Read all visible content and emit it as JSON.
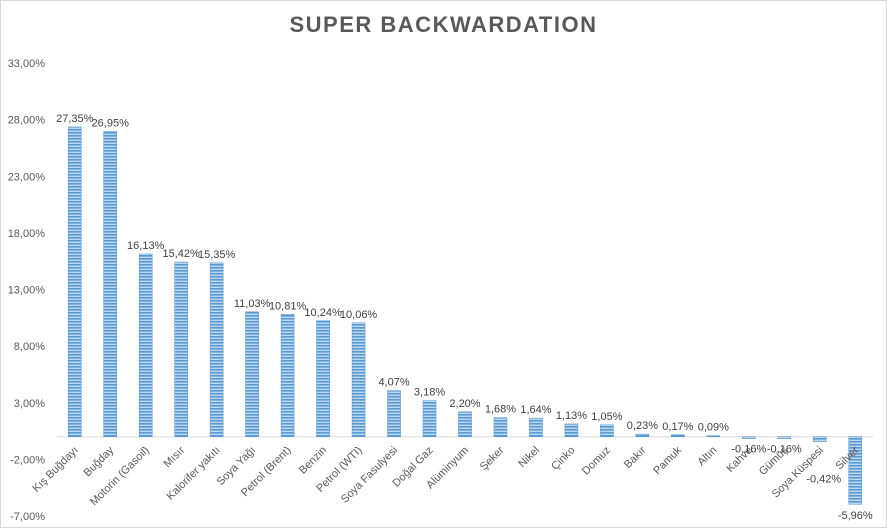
{
  "chart_data": {
    "type": "bar",
    "title": "SUPER BACKWARDATION",
    "xlabel": "",
    "ylabel": "",
    "ylim": [
      -7,
      33
    ],
    "yticks": [
      33,
      28,
      23,
      18,
      13,
      8,
      3,
      -2,
      -7
    ],
    "ytick_labels": [
      "33,00%",
      "28,00%",
      "23,00%",
      "18,00%",
      "13,00%",
      "8,00%",
      "3,00%",
      "-2,00%",
      "-7,00%"
    ],
    "grid": false,
    "legend": "none",
    "bar_color": "#5b9bd5",
    "categories": [
      "Kış Buğdayı",
      "Buğday",
      "Motorin (Gasoil)",
      "Mısır",
      "Kalorifer yakıtı",
      "Soya Yağı",
      "Petrol (Brent)",
      "Benzin",
      "Petrol (WTI)",
      "Soya Fasulyesi",
      "Doğal Gaz",
      "Alüminyum",
      "Şeker",
      "Nikel",
      "Çinko",
      "Domuz",
      "Bakır",
      "Pamuk",
      "Altın",
      "Kahve",
      "Gümüş",
      "Soya Küspesi",
      "Silver"
    ],
    "values": [
      27.35,
      26.95,
      16.13,
      15.42,
      15.35,
      11.03,
      10.81,
      10.24,
      10.06,
      4.07,
      3.18,
      2.2,
      1.68,
      1.64,
      1.13,
      1.05,
      0.23,
      0.17,
      0.09,
      -0.16,
      -0.16,
      -0.42,
      -5.96
    ],
    "value_labels": [
      "27,35%",
      "26,95%",
      "16,13%",
      "15,42%",
      "15,35%",
      "11,03%",
      "10,81%",
      "10,24%",
      "10,06%",
      "4,07%",
      "3,18%",
      "2,20%",
      "1,68%",
      "1,64%",
      "1,13%",
      "1,05%",
      "0,23%",
      "0,17%",
      "0,09%",
      "-0,16%",
      "-0,16%",
      "-0,42%",
      "-5,96%"
    ]
  }
}
